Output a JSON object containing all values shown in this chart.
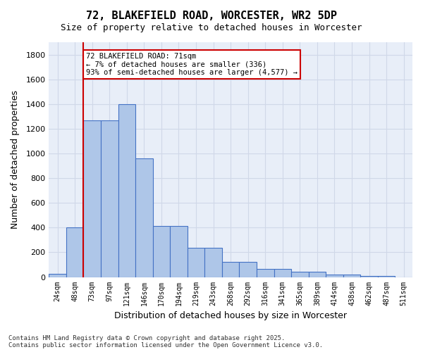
{
  "title": "72, BLAKEFIELD ROAD, WORCESTER, WR2 5DP",
  "subtitle": "Size of property relative to detached houses in Worcester",
  "xlabel": "Distribution of detached houses by size in Worcester",
  "ylabel": "Number of detached properties",
  "categories": [
    "24sqm",
    "48sqm",
    "73sqm",
    "97sqm",
    "121sqm",
    "146sqm",
    "170sqm",
    "194sqm",
    "219sqm",
    "243sqm",
    "268sqm",
    "292sqm",
    "316sqm",
    "341sqm",
    "365sqm",
    "389sqm",
    "414sqm",
    "438sqm",
    "462sqm",
    "487sqm",
    "511sqm"
  ],
  "values": [
    25,
    400,
    1265,
    1265,
    1400,
    960,
    415,
    415,
    235,
    235,
    120,
    120,
    65,
    65,
    45,
    45,
    18,
    18,
    10,
    10,
    0
  ],
  "bar_color": "#aec6e8",
  "bar_edge_color": "#4472c4",
  "grid_color": "#d0d8e8",
  "bg_color": "#e8eef8",
  "property_line_x": 71,
  "property_line_color": "#cc0000",
  "annotation_text": "72 BLAKEFIELD ROAD: 71sqm\n← 7% of detached houses are smaller (336)\n93% of semi-detached houses are larger (4,577) →",
  "annotation_box_color": "#cc0000",
  "footnote": "Contains HM Land Registry data © Crown copyright and database right 2025.\nContains public sector information licensed under the Open Government Licence v3.0.",
  "ylim": [
    0,
    1900
  ],
  "yticks": [
    0,
    200,
    400,
    600,
    800,
    1000,
    1200,
    1400,
    1600,
    1800
  ]
}
